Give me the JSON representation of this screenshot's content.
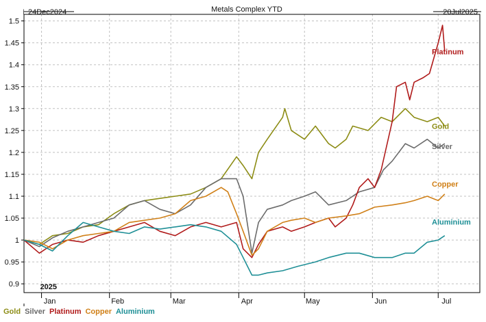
{
  "header": {
    "title": "Metals Complex YTD",
    "date_left": "24Dec2024",
    "date_right": "20Jul2025"
  },
  "colors": {
    "Gold": "#8c8c14",
    "Silver": "#6b6b6b",
    "Platinum": "#b01a1a",
    "Copper": "#d08018",
    "Aluminium": "#1e8f96",
    "grid": "#c0c0c0",
    "frame": "#000000"
  },
  "chart_data": {
    "type": "line",
    "title": "Metals Complex YTD",
    "xlabel": "",
    "ylabel": "",
    "ylim": [
      0.88,
      1.515
    ],
    "yticks": [
      "0.9",
      "0.95",
      "1",
      "1.05",
      "1.1",
      "1.15",
      "1.2",
      "1.25",
      "1.3",
      "1.35",
      "1.4",
      "1.45",
      "1.5"
    ],
    "xlim": [
      "2024-12-24",
      "2025-07-20"
    ],
    "months": [
      {
        "date": "2025-01-01",
        "label": "Jan"
      },
      {
        "date": "2025-02-01",
        "label": "Feb"
      },
      {
        "date": "2025-03-01",
        "label": "Mar"
      },
      {
        "date": "2025-04-01",
        "label": "Apr"
      },
      {
        "date": "2025-05-01",
        "label": "May"
      },
      {
        "date": "2025-06-01",
        "label": "Jun"
      },
      {
        "date": "2025-07-01",
        "label": "Jul"
      }
    ],
    "year_label": "2025",
    "grid": true,
    "series": [
      {
        "name": "Gold",
        "end_label": "Gold",
        "points": [
          [
            "2024-12-24",
            1.0
          ],
          [
            "2024-12-31",
            0.99
          ],
          [
            "2025-01-06",
            1.01
          ],
          [
            "2025-01-13",
            1.015
          ],
          [
            "2025-01-20",
            1.03
          ],
          [
            "2025-01-27",
            1.035
          ],
          [
            "2025-02-03",
            1.06
          ],
          [
            "2025-02-10",
            1.08
          ],
          [
            "2025-02-17",
            1.09
          ],
          [
            "2025-02-24",
            1.095
          ],
          [
            "2025-03-03",
            1.1
          ],
          [
            "2025-03-10",
            1.105
          ],
          [
            "2025-03-17",
            1.12
          ],
          [
            "2025-03-24",
            1.14
          ],
          [
            "2025-03-31",
            1.19
          ],
          [
            "2025-04-03",
            1.17
          ],
          [
            "2025-04-07",
            1.14
          ],
          [
            "2025-04-10",
            1.2
          ],
          [
            "2025-04-14",
            1.23
          ],
          [
            "2025-04-21",
            1.28
          ],
          [
            "2025-04-22",
            1.3
          ],
          [
            "2025-04-25",
            1.25
          ],
          [
            "2025-05-01",
            1.23
          ],
          [
            "2025-05-06",
            1.26
          ],
          [
            "2025-05-12",
            1.22
          ],
          [
            "2025-05-15",
            1.21
          ],
          [
            "2025-05-20",
            1.23
          ],
          [
            "2025-05-23",
            1.26
          ],
          [
            "2025-05-30",
            1.25
          ],
          [
            "2025-06-05",
            1.28
          ],
          [
            "2025-06-10",
            1.27
          ],
          [
            "2025-06-16",
            1.3
          ],
          [
            "2025-06-20",
            1.28
          ],
          [
            "2025-06-26",
            1.27
          ],
          [
            "2025-07-01",
            1.28
          ],
          [
            "2025-07-04",
            1.26
          ]
        ]
      },
      {
        "name": "Silver",
        "end_label": "Silver",
        "points": [
          [
            "2024-12-24",
            1.0
          ],
          [
            "2024-12-31",
            0.985
          ],
          [
            "2025-01-06",
            1.005
          ],
          [
            "2025-01-13",
            1.02
          ],
          [
            "2025-01-20",
            1.03
          ],
          [
            "2025-01-27",
            1.04
          ],
          [
            "2025-02-03",
            1.05
          ],
          [
            "2025-02-10",
            1.08
          ],
          [
            "2025-02-17",
            1.09
          ],
          [
            "2025-02-24",
            1.07
          ],
          [
            "2025-03-03",
            1.06
          ],
          [
            "2025-03-10",
            1.08
          ],
          [
            "2025-03-17",
            1.12
          ],
          [
            "2025-03-24",
            1.14
          ],
          [
            "2025-03-31",
            1.14
          ],
          [
            "2025-04-03",
            1.1
          ],
          [
            "2025-04-07",
            0.97
          ],
          [
            "2025-04-10",
            1.04
          ],
          [
            "2025-04-14",
            1.07
          ],
          [
            "2025-04-21",
            1.08
          ],
          [
            "2025-04-25",
            1.09
          ],
          [
            "2025-05-01",
            1.1
          ],
          [
            "2025-05-06",
            1.11
          ],
          [
            "2025-05-12",
            1.08
          ],
          [
            "2025-05-20",
            1.09
          ],
          [
            "2025-05-26",
            1.11
          ],
          [
            "2025-06-02",
            1.12
          ],
          [
            "2025-06-06",
            1.16
          ],
          [
            "2025-06-10",
            1.18
          ],
          [
            "2025-06-16",
            1.22
          ],
          [
            "2025-06-20",
            1.21
          ],
          [
            "2025-06-26",
            1.23
          ],
          [
            "2025-07-01",
            1.21
          ],
          [
            "2025-07-04",
            1.22
          ]
        ]
      },
      {
        "name": "Platinum",
        "end_label": "Platinum",
        "points": [
          [
            "2024-12-24",
            1.0
          ],
          [
            "2024-12-31",
            0.97
          ],
          [
            "2025-01-06",
            0.99
          ],
          [
            "2025-01-13",
            1.0
          ],
          [
            "2025-01-20",
            0.995
          ],
          [
            "2025-01-27",
            1.01
          ],
          [
            "2025-02-03",
            1.02
          ],
          [
            "2025-02-10",
            1.03
          ],
          [
            "2025-02-17",
            1.04
          ],
          [
            "2025-02-24",
            1.02
          ],
          [
            "2025-03-03",
            1.01
          ],
          [
            "2025-03-10",
            1.03
          ],
          [
            "2025-03-17",
            1.04
          ],
          [
            "2025-03-24",
            1.03
          ],
          [
            "2025-03-31",
            1.04
          ],
          [
            "2025-04-03",
            0.98
          ],
          [
            "2025-04-07",
            0.96
          ],
          [
            "2025-04-10",
            0.99
          ],
          [
            "2025-04-14",
            1.02
          ],
          [
            "2025-04-21",
            1.03
          ],
          [
            "2025-04-25",
            1.02
          ],
          [
            "2025-05-01",
            1.03
          ],
          [
            "2025-05-06",
            1.04
          ],
          [
            "2025-05-12",
            1.05
          ],
          [
            "2025-05-15",
            1.03
          ],
          [
            "2025-05-20",
            1.05
          ],
          [
            "2025-05-23",
            1.08
          ],
          [
            "2025-05-26",
            1.12
          ],
          [
            "2025-05-30",
            1.14
          ],
          [
            "2025-06-02",
            1.12
          ],
          [
            "2025-06-05",
            1.16
          ],
          [
            "2025-06-10",
            1.27
          ],
          [
            "2025-06-12",
            1.35
          ],
          [
            "2025-06-16",
            1.36
          ],
          [
            "2025-06-18",
            1.32
          ],
          [
            "2025-06-20",
            1.36
          ],
          [
            "2025-06-24",
            1.37
          ],
          [
            "2025-06-27",
            1.38
          ],
          [
            "2025-07-01",
            1.45
          ],
          [
            "2025-07-03",
            1.49
          ],
          [
            "2025-07-04",
            1.43
          ]
        ]
      },
      {
        "name": "Copper",
        "end_label": "Copper",
        "points": [
          [
            "2024-12-24",
            1.0
          ],
          [
            "2024-12-31",
            0.995
          ],
          [
            "2025-01-06",
            0.98
          ],
          [
            "2025-01-13",
            1.0
          ],
          [
            "2025-01-20",
            1.01
          ],
          [
            "2025-01-27",
            1.015
          ],
          [
            "2025-02-03",
            1.02
          ],
          [
            "2025-02-10",
            1.04
          ],
          [
            "2025-02-17",
            1.045
          ],
          [
            "2025-02-24",
            1.05
          ],
          [
            "2025-03-03",
            1.06
          ],
          [
            "2025-03-10",
            1.09
          ],
          [
            "2025-03-17",
            1.1
          ],
          [
            "2025-03-24",
            1.12
          ],
          [
            "2025-03-27",
            1.11
          ],
          [
            "2025-03-31",
            1.06
          ],
          [
            "2025-04-03",
            1.02
          ],
          [
            "2025-04-07",
            0.965
          ],
          [
            "2025-04-10",
            0.98
          ],
          [
            "2025-04-14",
            1.02
          ],
          [
            "2025-04-21",
            1.04
          ],
          [
            "2025-04-25",
            1.045
          ],
          [
            "2025-05-01",
            1.05
          ],
          [
            "2025-05-06",
            1.04
          ],
          [
            "2025-05-12",
            1.05
          ],
          [
            "2025-05-20",
            1.055
          ],
          [
            "2025-05-26",
            1.06
          ],
          [
            "2025-06-02",
            1.075
          ],
          [
            "2025-06-10",
            1.08
          ],
          [
            "2025-06-16",
            1.085
          ],
          [
            "2025-06-20",
            1.09
          ],
          [
            "2025-06-26",
            1.1
          ],
          [
            "2025-07-01",
            1.09
          ],
          [
            "2025-07-04",
            1.105
          ]
        ]
      },
      {
        "name": "Aluminium",
        "end_label": "Aluminium",
        "points": [
          [
            "2024-12-24",
            1.0
          ],
          [
            "2024-12-31",
            0.99
          ],
          [
            "2025-01-06",
            0.975
          ],
          [
            "2025-01-13",
            1.01
          ],
          [
            "2025-01-20",
            1.04
          ],
          [
            "2025-01-27",
            1.03
          ],
          [
            "2025-02-03",
            1.02
          ],
          [
            "2025-02-10",
            1.015
          ],
          [
            "2025-02-17",
            1.03
          ],
          [
            "2025-02-24",
            1.025
          ],
          [
            "2025-03-03",
            1.03
          ],
          [
            "2025-03-10",
            1.035
          ],
          [
            "2025-03-17",
            1.03
          ],
          [
            "2025-03-24",
            1.02
          ],
          [
            "2025-03-31",
            0.99
          ],
          [
            "2025-04-03",
            0.96
          ],
          [
            "2025-04-07",
            0.92
          ],
          [
            "2025-04-10",
            0.92
          ],
          [
            "2025-04-14",
            0.925
          ],
          [
            "2025-04-21",
            0.93
          ],
          [
            "2025-04-28",
            0.94
          ],
          [
            "2025-05-06",
            0.95
          ],
          [
            "2025-05-12",
            0.96
          ],
          [
            "2025-05-20",
            0.97
          ],
          [
            "2025-05-26",
            0.97
          ],
          [
            "2025-06-02",
            0.96
          ],
          [
            "2025-06-10",
            0.96
          ],
          [
            "2025-06-16",
            0.97
          ],
          [
            "2025-06-20",
            0.97
          ],
          [
            "2025-06-26",
            0.995
          ],
          [
            "2025-07-01",
            1.0
          ],
          [
            "2025-07-04",
            1.01
          ]
        ]
      }
    ],
    "legend": [
      "Gold",
      "Silver",
      "Platinum",
      "Copper",
      "Aluminium"
    ],
    "legend_position": "bottom-left"
  }
}
